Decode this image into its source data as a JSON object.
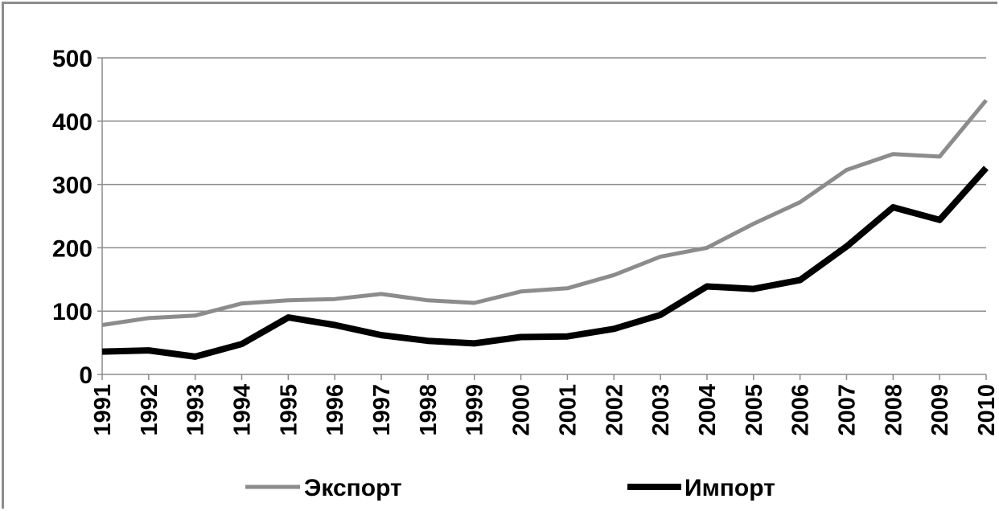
{
  "chart_data": {
    "type": "line",
    "title": "",
    "xlabel": "",
    "ylabel": "",
    "categories": [
      "1991",
      "1992",
      "1993",
      "1994",
      "1995",
      "1996",
      "1997",
      "1998",
      "1999",
      "2000",
      "2001",
      "2002",
      "2003",
      "2004",
      "2005",
      "2006",
      "2007",
      "2008",
      "2009",
      "2010"
    ],
    "series": [
      {
        "name": "Экспорт",
        "color": "#8c8c8c",
        "values": [
          78,
          89,
          93,
          112,
          117,
          119,
          127,
          117,
          113,
          131,
          136,
          157,
          186,
          200,
          238,
          272,
          323,
          348,
          344,
          433
        ]
      },
      {
        "name": "Импорт",
        "color": "#000000",
        "values": [
          36,
          38,
          28,
          48,
          90,
          78,
          62,
          53,
          49,
          59,
          60,
          72,
          94,
          139,
          135,
          149,
          202,
          264,
          244,
          326
        ]
      }
    ],
    "ylim": [
      0,
      500
    ],
    "yticks": [
      0,
      100,
      200,
      300,
      400,
      500
    ],
    "grid": true,
    "legend_position": "bottom"
  }
}
